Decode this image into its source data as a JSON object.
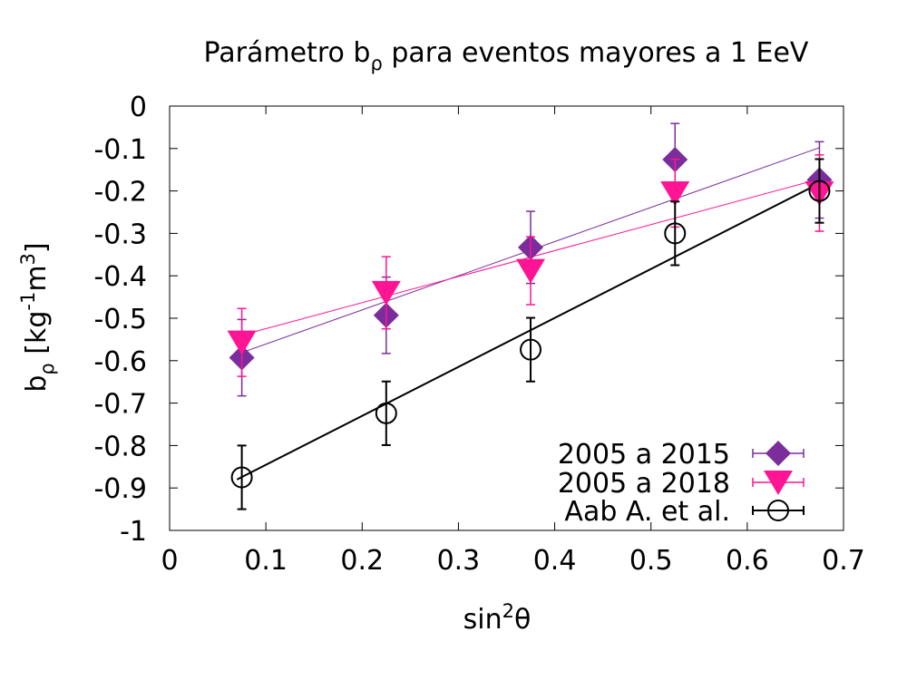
{
  "chart_data": {
    "type": "scatter",
    "title": {
      "main": "Parámetro b",
      "sub": "ρ",
      "rest": " para eventos mayores a 1 EeV"
    },
    "xlabel": {
      "main": "sin",
      "sup": "2",
      "rest": "θ"
    },
    "ylabel": {
      "main": "b",
      "sub": "ρ",
      "unit1": " [kg",
      "sup1": "-1",
      "unit2": "m",
      "sup2": "3",
      "close": "]"
    },
    "xlim": [
      0,
      0.7
    ],
    "ylim": [
      -1,
      0
    ],
    "xticks": [
      0,
      0.1,
      0.2,
      0.3,
      0.4,
      0.5,
      0.6,
      0.7
    ],
    "xtick_labels": [
      "0",
      "0.1",
      "0.2",
      "0.3",
      "0.4",
      "0.5",
      "0.6",
      "0.7"
    ],
    "yticks": [
      0,
      -0.1,
      -0.2,
      -0.3,
      -0.4,
      -0.5,
      -0.6,
      -0.7,
      -0.8,
      -0.9,
      -1
    ],
    "ytick_labels": [
      "0",
      "-0.1",
      "-0.2",
      "-0.3",
      "-0.4",
      "-0.5",
      "-0.6",
      "-0.7",
      "-0.8",
      "-0.9",
      "-1"
    ],
    "grid": false,
    "legend_position": "bottom-right",
    "series": [
      {
        "name": "2005 a 2015",
        "marker": "diamond",
        "color": "#7b2d9b",
        "x": [
          0.075,
          0.225,
          0.375,
          0.525,
          0.675
        ],
        "y": [
          -0.593,
          -0.493,
          -0.333,
          -0.126,
          -0.174
        ],
        "yerr": [
          0.09,
          0.09,
          0.085,
          0.085,
          0.09
        ],
        "fit": {
          "x": [
            0.07,
            0.675
          ],
          "y": [
            -0.585,
            -0.098
          ]
        }
      },
      {
        "name": "2005 a 2018",
        "marker": "triangle-down",
        "color": "#ff1493",
        "x": [
          0.075,
          0.225,
          0.375,
          0.525,
          0.675
        ],
        "y": [
          -0.557,
          -0.44,
          -0.388,
          -0.205,
          -0.205
        ],
        "yerr": [
          0.08,
          0.085,
          0.08,
          0.08,
          0.09
        ],
        "fit": {
          "x": [
            0.07,
            0.675
          ],
          "y": [
            -0.543,
            -0.172
          ]
        }
      },
      {
        "name": "Aab A. et al.",
        "marker": "open-circle",
        "color": "#000000",
        "x": [
          0.075,
          0.225,
          0.375,
          0.525,
          0.675
        ],
        "y": [
          -0.875,
          -0.724,
          -0.574,
          -0.3,
          -0.2
        ],
        "yerr": [
          0.075,
          0.075,
          0.075,
          0.075,
          0.075
        ],
        "fit": {
          "x": [
            0.07,
            0.675
          ],
          "y": [
            -0.88,
            -0.182
          ]
        }
      }
    ]
  }
}
